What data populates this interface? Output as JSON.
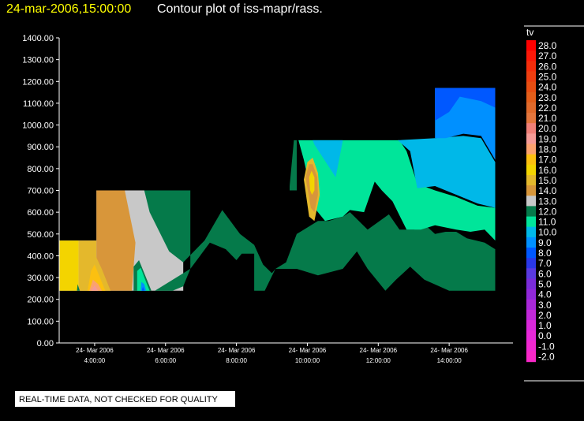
{
  "header": {
    "timestamp": "24-mar-2006,15:00:00",
    "title": "Contour plot of iss-mapr/rass."
  },
  "notice": "REAL-TIME DATA, NOT CHECKED FOR QUALITY",
  "chart_data": {
    "type": "heatmap",
    "title": "Contour plot of iss-mapr/rass.",
    "xlabel": "",
    "ylabel": "",
    "ylim": [
      0,
      1400
    ],
    "yticks": [
      "0.00",
      "100.00",
      "200.00",
      "300.00",
      "400.00",
      "500.00",
      "600.00",
      "700.00",
      "800.00",
      "900.00",
      "1000.00",
      "1100.00",
      "1200.00",
      "1300.00",
      "1400.00"
    ],
    "xlim": [
      3.0,
      15.8
    ],
    "xticks": [
      {
        "x": 4,
        "date": "24- Mar 2006",
        "time": "4:00:00"
      },
      {
        "x": 6,
        "date": "24- Mar 2006",
        "time": "6:00:00"
      },
      {
        "x": 8,
        "date": "24- Mar 2006",
        "time": "8:00:00"
      },
      {
        "x": 10,
        "date": "24- Mar 2006",
        "time": "10:00:00"
      },
      {
        "x": 12,
        "date": "24- Mar 2006",
        "time": "12:00:00"
      },
      {
        "x": 14,
        "date": "24- Mar 2006",
        "time": "14:00:00"
      }
    ],
    "legend": {
      "title": "tv",
      "position": "right",
      "levels": [
        {
          "value": "28.0",
          "color": "#ff0000"
        },
        {
          "value": "27.0",
          "color": "#fc1808"
        },
        {
          "value": "26.0",
          "color": "#f52d0b"
        },
        {
          "value": "25.0",
          "color": "#ee3e10"
        },
        {
          "value": "24.0",
          "color": "#e84e12"
        },
        {
          "value": "23.0",
          "color": "#e35e1a"
        },
        {
          "value": "22.0",
          "color": "#e06a2b"
        },
        {
          "value": "21.0",
          "color": "#e3763d"
        },
        {
          "value": "20.0",
          "color": "#f08078"
        },
        {
          "value": "19.0",
          "color": "#f59a96"
        },
        {
          "value": "18.0",
          "color": "#fba26e"
        },
        {
          "value": "17.0",
          "color": "#fcc010"
        },
        {
          "value": "16.0",
          "color": "#f3d400"
        },
        {
          "value": "15.0",
          "color": "#e4b82c"
        },
        {
          "value": "14.0",
          "color": "#d8963a"
        },
        {
          "value": "13.0",
          "color": "#c8c8c8"
        },
        {
          "value": "12.0",
          "color": "#057a4a"
        },
        {
          "value": "11.0",
          "color": "#00e59a"
        },
        {
          "value": "10.0",
          "color": "#00b8e8"
        },
        {
          "value": "9.0",
          "color": "#0090ff"
        },
        {
          "value": "8.0",
          "color": "#0058ff"
        },
        {
          "value": "7.0",
          "color": "#2a38e8"
        },
        {
          "value": "6.0",
          "color": "#5a3ae0"
        },
        {
          "value": "5.0",
          "color": "#7a2cd8"
        },
        {
          "value": "4.0",
          "color": "#9028d8"
        },
        {
          "value": "3.0",
          "color": "#a828d8"
        },
        {
          "value": "2.0",
          "color": "#c028d8"
        },
        {
          "value": "1.0",
          "color": "#d828d8"
        },
        {
          "value": "0.0",
          "color": "#e828d8"
        },
        {
          "value": "-1.0",
          "color": "#f028d0"
        },
        {
          "value": "-2.0",
          "color": "#f828c8"
        }
      ]
    },
    "regions": [
      {
        "level": "13.0",
        "points": [
          [
            3.0,
            240
          ],
          [
            3.0,
            470
          ],
          [
            4.05,
            470
          ],
          [
            4.05,
            700
          ],
          [
            6.5,
            700
          ],
          [
            6.5,
            240
          ]
        ]
      },
      {
        "level": "16.0",
        "points": [
          [
            3.0,
            240
          ],
          [
            3.0,
            470
          ],
          [
            3.55,
            470
          ],
          [
            3.55,
            240
          ]
        ]
      },
      {
        "level": "15.0",
        "points": [
          [
            3.55,
            240
          ],
          [
            3.55,
            470
          ],
          [
            4.05,
            470
          ],
          [
            4.05,
            240
          ]
        ]
      },
      {
        "level": "14.0",
        "points": [
          [
            4.05,
            470
          ],
          [
            4.05,
            700
          ],
          [
            4.85,
            700
          ],
          [
            5.15,
            460
          ],
          [
            5.05,
            240
          ],
          [
            4.05,
            240
          ]
        ]
      },
      {
        "level": "15.0",
        "points": [
          [
            3.6,
            240
          ],
          [
            3.75,
            360
          ],
          [
            4.0,
            410
          ],
          [
            4.2,
            340
          ],
          [
            4.45,
            240
          ]
        ]
      },
      {
        "level": "17.0",
        "points": [
          [
            3.8,
            240
          ],
          [
            3.9,
            330
          ],
          [
            4.0,
            360
          ],
          [
            4.15,
            300
          ],
          [
            4.3,
            240
          ]
        ]
      },
      {
        "level": "18.0",
        "points": [
          [
            3.85,
            240
          ],
          [
            3.95,
            290
          ],
          [
            4.1,
            270
          ],
          [
            4.2,
            240
          ]
        ]
      },
      {
        "level": "19.0",
        "points": [
          [
            3.9,
            240
          ],
          [
            4.0,
            265
          ],
          [
            4.1,
            240
          ]
        ]
      },
      {
        "level": "12.0",
        "points": [
          [
            3.5,
            240
          ],
          [
            3.52,
            270
          ],
          [
            3.58,
            240
          ]
        ]
      },
      {
        "level": "12.0",
        "points": [
          [
            5.1,
            240
          ],
          [
            5.1,
            350
          ],
          [
            5.25,
            380
          ],
          [
            5.45,
            300
          ],
          [
            5.6,
            240
          ]
        ]
      },
      {
        "level": "11.0",
        "points": [
          [
            5.2,
            240
          ],
          [
            5.2,
            330
          ],
          [
            5.3,
            345
          ],
          [
            5.45,
            280
          ],
          [
            5.55,
            240
          ]
        ]
      },
      {
        "level": "9.0",
        "points": [
          [
            5.3,
            240
          ],
          [
            5.32,
            280
          ],
          [
            5.4,
            270
          ],
          [
            5.45,
            240
          ]
        ]
      },
      {
        "level": "8.0",
        "points": [
          [
            5.33,
            240
          ],
          [
            5.36,
            258
          ],
          [
            5.41,
            240
          ]
        ]
      },
      {
        "level": "12.0",
        "points": [
          [
            5.4,
            700
          ],
          [
            5.55,
            600
          ],
          [
            6.1,
            420
          ],
          [
            6.5,
            370
          ],
          [
            7.1,
            470
          ],
          [
            7.6,
            610
          ],
          [
            8.1,
            500
          ],
          [
            8.5,
            450
          ],
          [
            8.75,
            360
          ],
          [
            9.0,
            320
          ],
          [
            9.1,
            340
          ],
          [
            9.4,
            370
          ],
          [
            9.7,
            500
          ],
          [
            10.3,
            560
          ],
          [
            10.6,
            560
          ],
          [
            11.0,
            580
          ],
          [
            11.2,
            600
          ],
          [
            11.7,
            520
          ],
          [
            12.3,
            590
          ],
          [
            12.6,
            520
          ],
          [
            13.0,
            520
          ],
          [
            13.4,
            530
          ],
          [
            13.6,
            500
          ],
          [
            13.9,
            510
          ],
          [
            14.2,
            510
          ],
          [
            14.5,
            480
          ],
          [
            15.0,
            460
          ],
          [
            15.3,
            430
          ],
          [
            15.3,
            240
          ],
          [
            14.0,
            240
          ],
          [
            13.3,
            290
          ],
          [
            12.9,
            350
          ],
          [
            12.5,
            290
          ],
          [
            12.2,
            240
          ],
          [
            11.7,
            340
          ],
          [
            11.4,
            420
          ],
          [
            11.0,
            340
          ],
          [
            10.3,
            310
          ],
          [
            9.7,
            340
          ],
          [
            9.1,
            340
          ],
          [
            8.8,
            240
          ],
          [
            8.5,
            240
          ],
          [
            8.5,
            410
          ],
          [
            8.15,
            410
          ],
          [
            8.0,
            380
          ],
          [
            7.7,
            430
          ],
          [
            7.25,
            460
          ],
          [
            6.7,
            340
          ],
          [
            6.3,
            300
          ],
          [
            5.7,
            240
          ],
          [
            6.2,
            240
          ],
          [
            6.5,
            260
          ],
          [
            6.7,
            340
          ],
          [
            6.7,
            700
          ]
        ]
      },
      {
        "level": "12.0",
        "points": [
          [
            9.7,
            930
          ],
          [
            9.7,
            700
          ],
          [
            9.5,
            700
          ],
          [
            9.5,
            720
          ],
          [
            9.62,
            930
          ]
        ]
      },
      {
        "level": "11.0",
        "points": [
          [
            9.75,
            930
          ],
          [
            9.9,
            840
          ],
          [
            10.2,
            620
          ],
          [
            10.5,
            560
          ],
          [
            11.0,
            580
          ],
          [
            11.2,
            610
          ],
          [
            11.6,
            600
          ],
          [
            11.9,
            740
          ],
          [
            12.1,
            700
          ],
          [
            12.4,
            650
          ],
          [
            12.8,
            520
          ],
          [
            13.2,
            520
          ],
          [
            13.6,
            540
          ],
          [
            14.2,
            520
          ],
          [
            14.6,
            510
          ],
          [
            15.0,
            520
          ],
          [
            15.3,
            470
          ],
          [
            15.3,
            620
          ],
          [
            14.8,
            630
          ],
          [
            14.2,
            670
          ],
          [
            13.6,
            700
          ],
          [
            13.1,
            730
          ],
          [
            12.8,
            880
          ],
          [
            12.6,
            930
          ]
        ]
      },
      {
        "level": "10.0",
        "points": [
          [
            10.15,
            930
          ],
          [
            10.2,
            910
          ],
          [
            10.8,
            760
          ],
          [
            11.0,
            930
          ]
        ]
      },
      {
        "level": "10.0",
        "points": [
          [
            12.55,
            930
          ],
          [
            12.9,
            880
          ],
          [
            13.1,
            710
          ],
          [
            13.6,
            720
          ],
          [
            14.2,
            680
          ],
          [
            14.8,
            640
          ],
          [
            15.3,
            620
          ],
          [
            15.3,
            830
          ],
          [
            14.9,
            940
          ],
          [
            14.4,
            950
          ],
          [
            13.6,
            940
          ]
        ]
      },
      {
        "level": "9.0",
        "points": [
          [
            13.6,
            940
          ],
          [
            13.6,
            1170
          ],
          [
            15.3,
            1170
          ],
          [
            15.3,
            840
          ],
          [
            14.9,
            950
          ],
          [
            14.4,
            960
          ],
          [
            13.9,
            940
          ]
        ]
      },
      {
        "level": "8.0",
        "points": [
          [
            13.6,
            1170
          ],
          [
            13.6,
            1020
          ],
          [
            14.0,
            1060
          ],
          [
            14.3,
            1130
          ],
          [
            14.9,
            1110
          ],
          [
            15.3,
            1080
          ],
          [
            15.3,
            1170
          ]
        ]
      },
      {
        "level": "15.0",
        "points": [
          [
            9.9,
            750
          ],
          [
            10.0,
            830
          ],
          [
            10.15,
            850
          ],
          [
            10.3,
            780
          ],
          [
            10.35,
            680
          ],
          [
            10.2,
            560
          ],
          [
            10.05,
            580
          ]
        ]
      },
      {
        "level": "14.0",
        "points": [
          [
            9.95,
            760
          ],
          [
            10.05,
            820
          ],
          [
            10.15,
            820
          ],
          [
            10.28,
            760
          ],
          [
            10.3,
            680
          ],
          [
            10.2,
            600
          ],
          [
            10.1,
            620
          ]
        ]
      },
      {
        "level": "16.0",
        "points": [
          [
            10.05,
            760
          ],
          [
            10.12,
            790
          ],
          [
            10.2,
            760
          ],
          [
            10.2,
            700
          ],
          [
            10.13,
            680
          ],
          [
            10.08,
            700
          ]
        ]
      }
    ]
  }
}
